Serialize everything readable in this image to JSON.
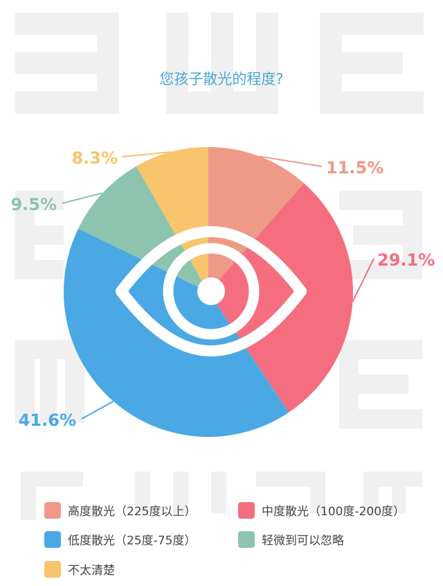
{
  "chart_data": {
    "type": "pie",
    "title": "您孩子散光的程度?",
    "slices": [
      {
        "label": "高度散光（225度以上）",
        "value": 11.5,
        "value_label": "11.5%",
        "color": "#EE9A86"
      },
      {
        "label": "中度散光（100度-200度）",
        "value": 29.1,
        "value_label": "29.1%",
        "color": "#F46E80"
      },
      {
        "label": "低度散光（25度-75度）",
        "value": 41.6,
        "value_label": "41.6%",
        "color": "#4AA8E4"
      },
      {
        "label": "轻微到可以忽略",
        "value": 9.5,
        "value_label": "9.5%",
        "color": "#8CC4B0"
      },
      {
        "label": "不太清楚",
        "value": 8.3,
        "value_label": "8.3%",
        "color": "#F8C46C"
      }
    ],
    "legend_position": "bottom"
  },
  "colors": {
    "title": "#4AA8D8",
    "background_letters": "#F0F0F0",
    "eye_icon": "#ffffff"
  }
}
